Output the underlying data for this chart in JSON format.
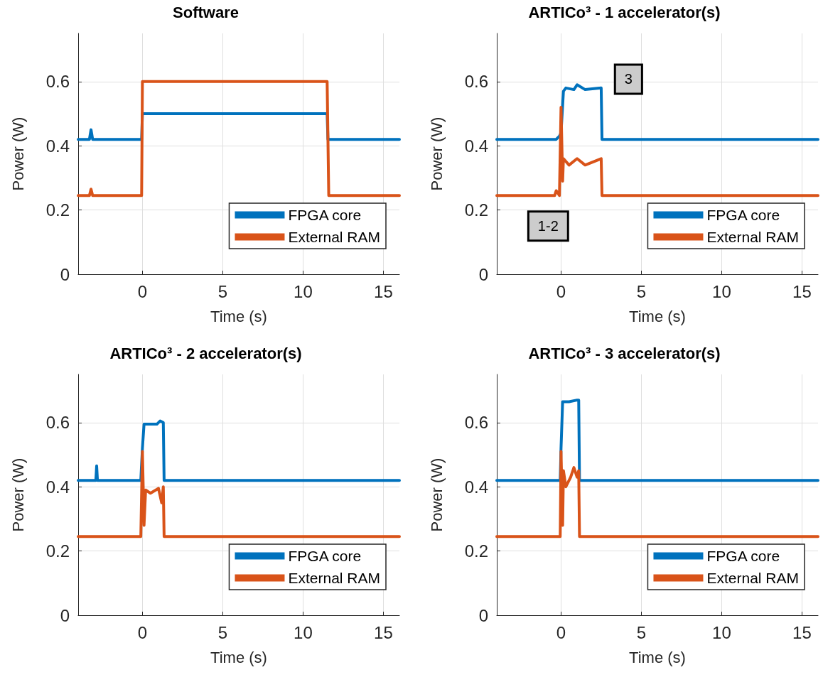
{
  "chart_data": [
    {
      "type": "line",
      "title": "Software",
      "xlabel": "Time (s)",
      "ylabel": "Power (W)",
      "xlim": [
        -4,
        16
      ],
      "xticks": [
        0,
        5,
        10,
        15
      ],
      "ylim": [
        0,
        0.75
      ],
      "yticks": [
        0,
        0.2,
        0.4,
        0.6
      ],
      "grid": true,
      "legend": "bottom right",
      "marker": "none",
      "line_style": "solid",
      "series": [
        {
          "name": "FPGA core",
          "color": "#0072bd",
          "x": [
            -4,
            -3.3,
            -3.2,
            -3.1,
            -2.0,
            -0.05,
            0,
            11.5,
            11.55,
            16
          ],
          "values": [
            0.42,
            0.42,
            0.45,
            0.42,
            0.42,
            0.42,
            0.5,
            0.5,
            0.42,
            0.42
          ]
        },
        {
          "name": "External RAM",
          "color": "#d95319",
          "x": [
            -4,
            -3.3,
            -3.2,
            -3.1,
            -0.05,
            0,
            11.5,
            11.6,
            16
          ],
          "values": [
            0.245,
            0.245,
            0.265,
            0.245,
            0.245,
            0.6,
            0.6,
            0.245,
            0.245
          ]
        }
      ]
    },
    {
      "type": "line",
      "title": "ARTICo³ - 1 accelerator(s)",
      "xlabel": "Time (s)",
      "ylabel": "Power (W)",
      "xlim": [
        -4,
        16
      ],
      "xticks": [
        0,
        5,
        10,
        15
      ],
      "ylim": [
        0,
        0.75
      ],
      "yticks": [
        0,
        0.2,
        0.4,
        0.6
      ],
      "grid": true,
      "legend": "bottom right",
      "marker": "none",
      "line_style": "solid",
      "annotations": [
        "3",
        "1-2"
      ],
      "series": [
        {
          "name": "FPGA core",
          "color": "#0072bd",
          "x": [
            -4,
            -0.3,
            -0.1,
            0,
            0.15,
            0.3,
            0.8,
            1.0,
            1.5,
            2.5,
            2.55,
            16
          ],
          "values": [
            0.42,
            0.42,
            0.43,
            0.44,
            0.57,
            0.58,
            0.575,
            0.59,
            0.575,
            0.58,
            0.42,
            0.42
          ]
        },
        {
          "name": "External RAM",
          "color": "#d95319",
          "x": [
            -4,
            -0.4,
            -0.3,
            -0.1,
            0,
            0.1,
            0.15,
            0.5,
            1.0,
            1.5,
            2.5,
            2.55,
            16
          ],
          "values": [
            0.245,
            0.245,
            0.26,
            0.245,
            0.52,
            0.29,
            0.36,
            0.34,
            0.36,
            0.34,
            0.36,
            0.245,
            0.245
          ]
        }
      ]
    },
    {
      "type": "line",
      "title": "ARTICo³ - 2 accelerator(s)",
      "xlabel": "Time (s)",
      "ylabel": "Power (W)",
      "xlim": [
        -4,
        16
      ],
      "xticks": [
        0,
        5,
        10,
        15
      ],
      "ylim": [
        0,
        0.75
      ],
      "yticks": [
        0,
        0.2,
        0.4,
        0.6
      ],
      "grid": true,
      "legend": "bottom right",
      "marker": "none",
      "line_style": "solid",
      "series": [
        {
          "name": "FPGA core",
          "color": "#0072bd",
          "x": [
            -4,
            -2.9,
            -2.85,
            -2.8,
            -0.1,
            0,
            0.1,
            0.5,
            0.9,
            1.1,
            1.3,
            1.35,
            16
          ],
          "values": [
            0.42,
            0.42,
            0.465,
            0.42,
            0.42,
            0.52,
            0.595,
            0.595,
            0.595,
            0.605,
            0.6,
            0.42,
            0.42
          ]
        },
        {
          "name": "External RAM",
          "color": "#d95319",
          "x": [
            -4,
            -0.1,
            0,
            0.1,
            0.2,
            0.5,
            1.0,
            1.2,
            1.3,
            1.35,
            16
          ],
          "values": [
            0.245,
            0.245,
            0.51,
            0.28,
            0.39,
            0.38,
            0.395,
            0.35,
            0.4,
            0.245,
            0.245
          ]
        }
      ]
    },
    {
      "type": "line",
      "title": "ARTICo³ - 3 accelerator(s)",
      "xlabel": "Time (s)",
      "ylabel": "Power (W)",
      "xlim": [
        -4,
        16
      ],
      "xticks": [
        0,
        5,
        10,
        15
      ],
      "ylim": [
        0,
        0.75
      ],
      "yticks": [
        0,
        0.2,
        0.4,
        0.6
      ],
      "grid": true,
      "legend": "bottom right",
      "marker": "none",
      "line_style": "solid",
      "series": [
        {
          "name": "FPGA core",
          "color": "#0072bd",
          "x": [
            -4,
            -0.05,
            0,
            0.1,
            0.5,
            1.0,
            1.1,
            1.15,
            16
          ],
          "values": [
            0.42,
            0.42,
            0.52,
            0.665,
            0.665,
            0.67,
            0.67,
            0.42,
            0.42
          ]
        },
        {
          "name": "External RAM",
          "color": "#d95319",
          "x": [
            -4,
            -0.05,
            0,
            0.1,
            0.15,
            0.3,
            0.6,
            0.8,
            1.0,
            1.1,
            1.15,
            16
          ],
          "values": [
            0.245,
            0.245,
            0.51,
            0.28,
            0.45,
            0.4,
            0.43,
            0.46,
            0.43,
            0.45,
            0.245,
            0.245
          ]
        }
      ]
    }
  ]
}
